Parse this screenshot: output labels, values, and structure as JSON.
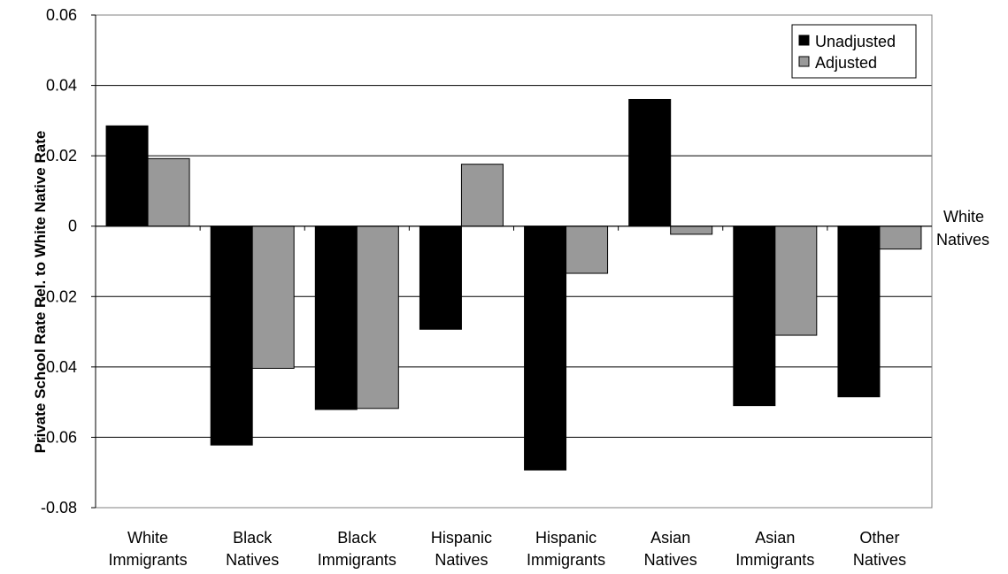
{
  "chart_data": {
    "type": "bar",
    "ylabel": "Private School Rate Rel. to White Native Rate",
    "ylim": [
      -0.08,
      0.06
    ],
    "yticks": [
      "0.06",
      "0.04",
      "0.02",
      "0",
      "-0.02",
      "-0.04",
      "-0.06",
      "-0.08"
    ],
    "ytick_values": [
      0.06,
      0.04,
      0.02,
      0,
      -0.02,
      -0.04,
      -0.06,
      -0.08
    ],
    "grid": "horizontal",
    "legend_position": "top-right",
    "categories": [
      [
        "White",
        "Immigrants"
      ],
      [
        "Black",
        "Natives"
      ],
      [
        "Black",
        "Immigrants"
      ],
      [
        "Hispanic",
        "Natives"
      ],
      [
        "Hispanic",
        "Immigrants"
      ],
      [
        "Asian",
        "Natives"
      ],
      [
        "Asian",
        "Immigrants"
      ],
      [
        "Other",
        "Natives"
      ]
    ],
    "series": [
      {
        "name": "Unadjusted",
        "color": "#000000",
        "values": [
          0.0285,
          -0.0622,
          -0.0521,
          -0.0293,
          -0.0693,
          0.036,
          -0.051,
          -0.0485
        ]
      },
      {
        "name": "Adjusted",
        "color": "#999999",
        "values": [
          0.0192,
          -0.0404,
          -0.0518,
          0.0176,
          -0.0134,
          -0.0023,
          -0.031,
          -0.0065
        ]
      }
    ],
    "annotation": [
      "White",
      "Natives"
    ]
  }
}
